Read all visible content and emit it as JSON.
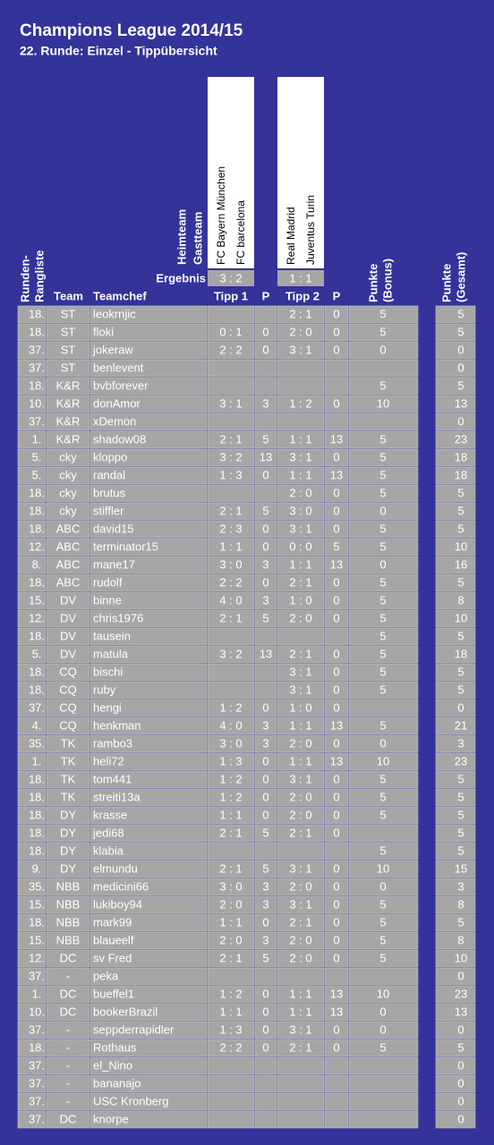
{
  "header": {
    "title": "Champions League 2014/15",
    "subtitle": "22. Runde: Einzel - Tippübersicht"
  },
  "labels": {
    "home": "Heimteam",
    "away": "Gastteam",
    "result": "Ergebnis",
    "rank": [
      "Runden-",
      "Rangliste"
    ],
    "team": "Team",
    "chef": "Teamchef",
    "tipp1": "Tipp 1",
    "p1": "P",
    "tipp2": "Tipp 2",
    "p2": "P",
    "bonus": [
      "Punkte",
      "(Bonus)"
    ],
    "total": [
      "Punkte",
      "(Gesamt)"
    ]
  },
  "matches": [
    {
      "home": "FC Bayern München",
      "away": "FC barcelona",
      "result": "3 : 2"
    },
    {
      "home": "Real Madrid",
      "away": "Juventus Turin",
      "result": "1 : 1"
    }
  ],
  "table": {
    "rows": [
      [
        "18.",
        "ST",
        "leokrnjic",
        null,
        null,
        "2 : 1",
        0,
        5,
        5
      ],
      [
        "18.",
        "ST",
        "floki",
        "0 : 1",
        0,
        "2 : 0",
        0,
        5,
        5
      ],
      [
        "37.",
        "ST",
        "jokeraw",
        "2 : 2",
        0,
        "3 : 1",
        0,
        0,
        0
      ],
      [
        "37.",
        "ST",
        "benlevent",
        null,
        null,
        null,
        null,
        null,
        0
      ],
      [
        "18.",
        "K&R",
        "bvbforever",
        null,
        null,
        null,
        null,
        5,
        5
      ],
      [
        "10.",
        "K&R",
        "donAmor",
        "3 : 1",
        3,
        "1 : 2",
        0,
        10,
        13
      ],
      [
        "37.",
        "K&R",
        "xDemon",
        null,
        null,
        null,
        null,
        null,
        0
      ],
      [
        "1.",
        "K&R",
        "shadow08",
        "2 : 1",
        5,
        "1 : 1",
        13,
        5,
        23
      ],
      [
        "5.",
        "cky",
        "kloppo",
        "3 : 2",
        13,
        "3 : 1",
        0,
        5,
        18
      ],
      [
        "5.",
        "cky",
        "randal",
        "1 : 3",
        0,
        "1 : 1",
        13,
        5,
        18
      ],
      [
        "18.",
        "cky",
        "brutus",
        null,
        null,
        "2 : 0",
        0,
        5,
        5
      ],
      [
        "18.",
        "cky",
        "stiffler",
        "2 : 1",
        5,
        "3 : 0",
        0,
        0,
        5
      ],
      [
        "18.",
        "ABC",
        "david15",
        "2 : 3",
        0,
        "3 : 1",
        0,
        5,
        5
      ],
      [
        "12.",
        "ABC",
        "terminator15",
        "1 : 1",
        0,
        "0 : 0",
        5,
        5,
        10
      ],
      [
        "8.",
        "ABC",
        "mane17",
        "3 : 0",
        3,
        "1 : 1",
        13,
        0,
        16
      ],
      [
        "18.",
        "ABC",
        "rudolf",
        "2 : 2",
        0,
        "2 : 1",
        0,
        5,
        5
      ],
      [
        "15.",
        "DV",
        "binne",
        "4 : 0",
        3,
        "1 : 0",
        0,
        5,
        8
      ],
      [
        "12.",
        "DV",
        "chris1976",
        "2 : 1",
        5,
        "2 : 0",
        0,
        5,
        10
      ],
      [
        "18.",
        "DV",
        "tausein",
        null,
        null,
        null,
        null,
        5,
        5
      ],
      [
        "5.",
        "DV",
        "matula",
        "3 : 2",
        13,
        "2 : 1",
        0,
        5,
        18
      ],
      [
        "18.",
        "CQ",
        "bischi",
        null,
        null,
        "3 : 1",
        0,
        5,
        5
      ],
      [
        "18.",
        "CQ",
        "ruby",
        null,
        null,
        "3 : 1",
        0,
        5,
        5
      ],
      [
        "37.",
        "CQ",
        "hengi",
        "1 : 2",
        0,
        "1 : 0",
        0,
        null,
        0
      ],
      [
        "4.",
        "CQ",
        "henkman",
        "4 : 0",
        3,
        "1 : 1",
        13,
        5,
        21
      ],
      [
        "35.",
        "TK",
        "rambo3",
        "3 : 0",
        3,
        "2 : 0",
        0,
        0,
        3
      ],
      [
        "1.",
        "TK",
        "heli72",
        "1 : 3",
        0,
        "1 : 1",
        13,
        10,
        23
      ],
      [
        "18.",
        "TK",
        "tom441",
        "1 : 2",
        0,
        "3 : 1",
        0,
        5,
        5
      ],
      [
        "18.",
        "TK",
        "streiti13a",
        "1 : 2",
        0,
        "2 : 0",
        0,
        5,
        5
      ],
      [
        "18.",
        "DY",
        "krasse",
        "1 : 1",
        0,
        "2 : 0",
        0,
        5,
        5
      ],
      [
        "18.",
        "DY",
        "jedi68",
        "2 : 1",
        5,
        "2 : 1",
        0,
        null,
        5
      ],
      [
        "18.",
        "DY",
        "klabia",
        null,
        null,
        null,
        null,
        5,
        5
      ],
      [
        "9.",
        "DY",
        "elmundu",
        "2 : 1",
        5,
        "3 : 1",
        0,
        10,
        15
      ],
      [
        "35.",
        "NBB",
        "medicini66",
        "3 : 0",
        3,
        "2 : 0",
        0,
        0,
        3
      ],
      [
        "15.",
        "NBB",
        "lukiboy94",
        "2 : 0",
        3,
        "3 : 1",
        0,
        5,
        8
      ],
      [
        "18.",
        "NBB",
        "mark99",
        "1 : 1",
        0,
        "2 : 1",
        0,
        5,
        5
      ],
      [
        "15.",
        "NBB",
        "blaueelf",
        "2 : 0",
        3,
        "2 : 0",
        0,
        5,
        8
      ],
      [
        "12.",
        "DC",
        "sv Fred",
        "2 : 1",
        5,
        "2 : 0",
        0,
        5,
        10
      ],
      [
        "37.",
        "-",
        "peka",
        null,
        null,
        null,
        null,
        null,
        0
      ],
      [
        "1.",
        "DC",
        "bueffel1",
        "1 : 2",
        0,
        "1 : 1",
        13,
        10,
        23
      ],
      [
        "10.",
        "DC",
        "bookerBrazil",
        "1 : 1",
        0,
        "1 : 1",
        13,
        0,
        13
      ],
      [
        "37.",
        "-",
        "seppderrapidler",
        "1 : 3",
        0,
        "3 : 1",
        0,
        0,
        0
      ],
      [
        "18.",
        "-",
        "Rothaus",
        "2 : 2",
        0,
        "2 : 1",
        0,
        5,
        5
      ],
      [
        "37.",
        "-",
        "el_Nino",
        null,
        null,
        null,
        null,
        null,
        0
      ],
      [
        "37.",
        "-",
        "bananajo",
        null,
        null,
        null,
        null,
        null,
        0
      ],
      [
        "37.",
        "-",
        "USC Kronberg",
        null,
        null,
        null,
        null,
        null,
        0
      ],
      [
        "37.",
        "DC",
        "knorpe",
        null,
        null,
        null,
        null,
        null,
        0
      ]
    ]
  }
}
